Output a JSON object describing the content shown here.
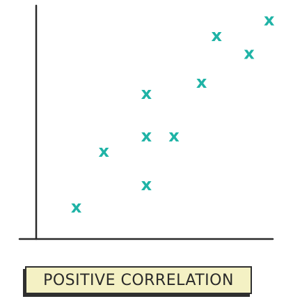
{
  "chart_data": {
    "type": "scatter",
    "title": "",
    "xlabel": "",
    "ylabel": "",
    "marker": "x",
    "xlim": [
      0,
      100
    ],
    "ylim": [
      0,
      100
    ],
    "grid": false,
    "points": [
      {
        "x": 16,
        "y": 14
      },
      {
        "x": 27,
        "y": 39
      },
      {
        "x": 44,
        "y": 24
      },
      {
        "x": 44,
        "y": 46
      },
      {
        "x": 44,
        "y": 65
      },
      {
        "x": 55,
        "y": 46
      },
      {
        "x": 66,
        "y": 70
      },
      {
        "x": 72,
        "y": 91
      },
      {
        "x": 85,
        "y": 83
      },
      {
        "x": 93,
        "y": 98
      }
    ]
  },
  "colors": {
    "marker": "#1fb3a6",
    "axis": "#2a2a2a",
    "caption_bg": "#f4f1c4"
  },
  "caption": {
    "text": "POSITIVE CORRELATION"
  }
}
